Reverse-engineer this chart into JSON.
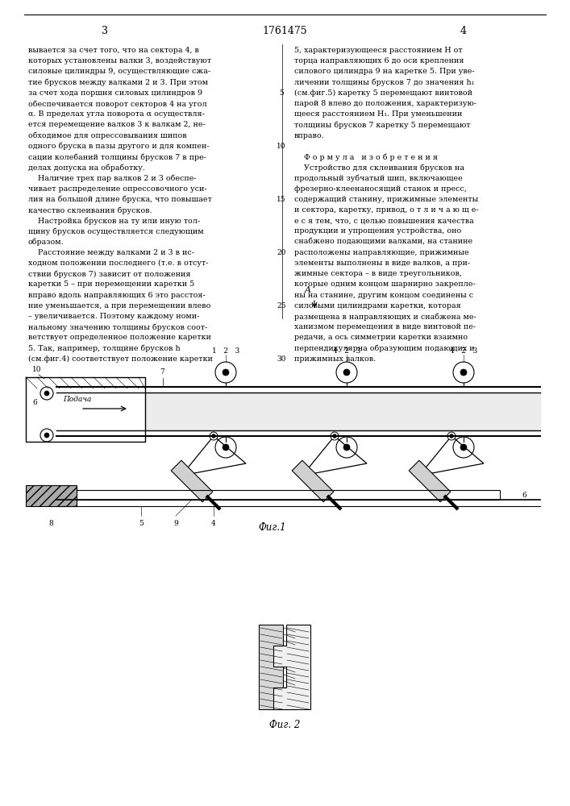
{
  "page_width": 7.07,
  "page_height": 10.0,
  "bg_color": "#ffffff",
  "header_num_left": "3",
  "header_patent": "1761475",
  "header_num_right": "4",
  "left_col_text": [
    "вывается за счет того, что на сектора 4, в",
    "которых установлены валки 3, воздействуют",
    "силовые цилиндры 9, осуществляющие сжа-",
    "тие брусков между валками 2 и 3. При этом",
    "за счет хода поршня силовых цилиндров 9",
    "обеспечивается поворот секторов 4 на угол",
    "α. В пределах угла поворота α осуществля-",
    "ется перемещение валков 3 к валкам 2, не-",
    "обходимое для опрессовывания шипов",
    "одного бруска в пазы другого и для компен-",
    "сации колебаний толщины брусков 7 в пре-",
    "делах допуска на обработку.",
    "    Наличие трех пар валков 2 и 3 обеспе-",
    "чивает распределение опрессовочного уси-",
    "лия на большой длине бруска, что повышает",
    "качество склеивания брусков.",
    "    Настройка брусков на ту или иную тол-",
    "щину брусков осуществляется следующим",
    "образом.",
    "    Расстояние между валками 2 и 3 в ис-",
    "ходном положении последнего (т.е. в отсут-",
    "ствии брусков 7) зависит от положения",
    "каретки 5 – при перемещении каретки 5",
    "вправо вдоль направляющих 6 это расстоя-",
    "ние уменьшается, а при перемещении влево",
    "– увеличивается. Поэтому каждому номи-",
    "нальному значению толщины брусков соот-",
    "ветствует определенное положение каретки",
    "5. Так, например, толщине брусков h",
    "(см.фиг.4) соответствует положение каретки"
  ],
  "right_col_text": [
    "5, характеризующееся расстоянием H от",
    "торца направляющих 6 до оси крепления",
    "силового цилиндра 9 на каретке 5. При уве-",
    "личении толщины брусков 7 до значения h₁",
    "(см.фиг.5) каретку 5 перемещают винтовой",
    "парой 8 влево до положения, характеризую-",
    "щееся расстоянием H₁. При уменьшении",
    "толщины брусков 7 каретку 5 перемещают",
    "вправо.",
    "",
    "    Ф о р м у л а   и з о б р е т е н и я",
    "    Устройство для склеивания брусков на",
    "продольный зубчатый шип, включающее",
    "фрезерно-клеенаносящий станок и пресс,",
    "содержащий станину, прижимные элементы",
    "и сектора, каретку, привод, о т л и ч а ю щ е-",
    "е с я тем, что, с целью повышения качества",
    "продукции и упрощения устройства, оно",
    "снабжено подающими валками, на станине",
    "расположены направляющие, прижимные",
    "элементы выполнены в виде валков, а при-",
    "жимные сектора – в виде треугольников,",
    "которые одним концом шарнирно закрепле-",
    "ны на станине, другим концом соединены с",
    "силовыми цилиндрами каретки, которая",
    "размещена в направляющих и снабжена ме-",
    "ханизмом перемещения в виде винтовой пе-",
    "редачи, а ось симметрии каретки взаимно",
    "перпендикулярна образующим подающих и",
    "прижимных валков."
  ],
  "line_numbers": [
    "5",
    "10",
    "15",
    "20",
    "25",
    "30"
  ],
  "line_number_positions": [
    4,
    9,
    14,
    19,
    24,
    29
  ],
  "fig1_caption": "Фиг.1",
  "fig2_caption": "Фиг. 2"
}
